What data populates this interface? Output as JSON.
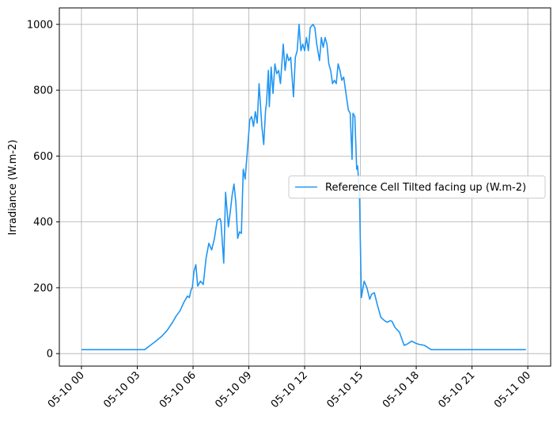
{
  "chart_data": {
    "type": "line",
    "ylabel": "Irradiance (W.m-2)",
    "x": [
      0,
      1,
      2,
      3,
      3.4,
      3.7,
      4.0,
      4.3,
      4.6,
      4.9,
      5.1,
      5.3,
      5.5,
      5.7,
      5.8,
      5.9,
      5.96,
      6.05,
      6.15,
      6.25,
      6.4,
      6.55,
      6.7,
      6.85,
      7.0,
      7.15,
      7.3,
      7.45,
      7.5,
      7.65,
      7.75,
      7.9,
      8.0,
      8.1,
      8.2,
      8.3,
      8.4,
      8.5,
      8.6,
      8.7,
      8.8,
      8.9,
      9.05,
      9.15,
      9.25,
      9.35,
      9.45,
      9.55,
      9.7,
      9.8,
      9.9,
      9.95,
      10.05,
      10.1,
      10.2,
      10.3,
      10.4,
      10.5,
      10.6,
      10.7,
      10.85,
      10.95,
      11.05,
      11.15,
      11.25,
      11.4,
      11.5,
      11.6,
      11.7,
      11.8,
      11.9,
      12.0,
      12.1,
      12.2,
      12.3,
      12.45,
      12.55,
      12.65,
      12.8,
      12.9,
      13.0,
      13.1,
      13.2,
      13.3,
      13.4,
      13.5,
      13.6,
      13.7,
      13.8,
      13.9,
      14.0,
      14.1,
      14.2,
      14.35,
      14.45,
      14.55,
      14.6,
      14.7,
      14.8,
      14.85,
      14.95,
      15.05,
      15.2,
      15.35,
      15.5,
      15.6,
      15.75,
      15.9,
      16.1,
      16.3,
      16.45,
      16.6,
      16.7,
      16.85,
      17.1,
      17.35,
      17.55,
      17.75,
      17.95,
      18.15,
      18.45,
      18.8,
      19.5,
      21,
      22.5,
      23.9
    ],
    "series": [
      {
        "name": "Reference Cell Tilted facing up (W.m-2)",
        "color": "#2196f3",
        "values": [
          12,
          12,
          12,
          12,
          12,
          25,
          38,
          52,
          70,
          95,
          115,
          130,
          155,
          175,
          170,
          195,
          200,
          250,
          270,
          205,
          220,
          210,
          290,
          335,
          315,
          350,
          405,
          410,
          400,
          275,
          490,
          385,
          430,
          480,
          515,
          460,
          350,
          370,
          365,
          560,
          530,
          600,
          710,
          720,
          690,
          735,
          700,
          820,
          690,
          635,
          740,
          760,
          860,
          750,
          870,
          790,
          880,
          850,
          860,
          820,
          940,
          860,
          910,
          890,
          900,
          780,
          900,
          920,
          1000,
          920,
          940,
          920,
          960,
          920,
          990,
          1000,
          990,
          940,
          890,
          960,
          930,
          960,
          940,
          880,
          860,
          820,
          830,
          820,
          880,
          860,
          830,
          840,
          800,
          740,
          730,
          590,
          730,
          720,
          560,
          570,
          480,
          170,
          220,
          200,
          165,
          180,
          185,
          150,
          110,
          100,
          95,
          100,
          98,
          80,
          65,
          25,
          30,
          38,
          32,
          28,
          25,
          12,
          12,
          12,
          12,
          12
        ]
      }
    ],
    "xlim": [
      -1.19,
      25.23
    ],
    "ylim": [
      -38,
      1050
    ],
    "xticks": [
      {
        "value": 0,
        "label": "05-10 00"
      },
      {
        "value": 3,
        "label": "05-10 03"
      },
      {
        "value": 6,
        "label": "05-10 06"
      },
      {
        "value": 9,
        "label": "05-10 09"
      },
      {
        "value": 12,
        "label": "05-10 12"
      },
      {
        "value": 15,
        "label": "05-10 15"
      },
      {
        "value": 18,
        "label": "05-10 18"
      },
      {
        "value": 21,
        "label": "05-10 21"
      },
      {
        "value": 24,
        "label": "05-11 00"
      }
    ],
    "yticks": [
      0,
      200,
      400,
      600,
      800,
      1000
    ],
    "grid": true,
    "legend": "center right"
  }
}
